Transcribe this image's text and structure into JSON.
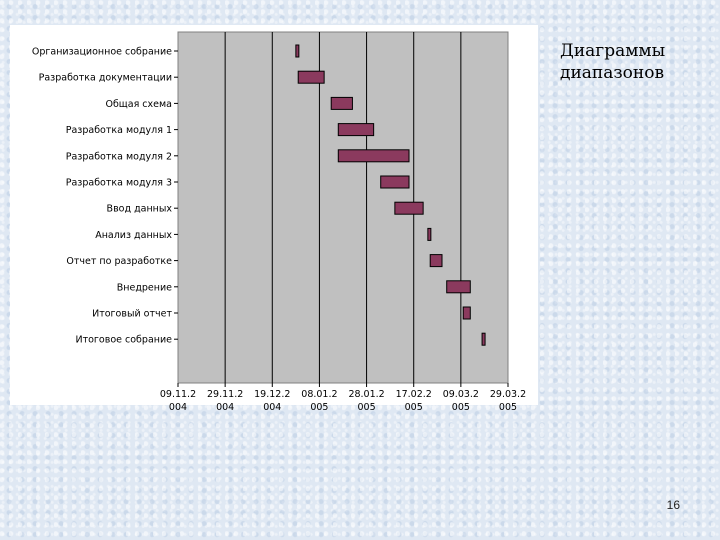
{
  "slide": {
    "title_line1": "Диаграммы",
    "title_line2": "диапазонов",
    "page_number": "16"
  },
  "colors": {
    "plot_background": "#c0c0c0",
    "bar_fill": "#8b3a5e",
    "bar_stroke": "#000000",
    "gridline": "#000000"
  },
  "chart_data": {
    "type": "bar",
    "orientation": "horizontal-range",
    "title": "",
    "xlabel": "",
    "ylabel": "",
    "grid": true,
    "legend": "none",
    "x_tick_labels": [
      [
        "09.11.2",
        "004"
      ],
      [
        "29.11.2",
        "004"
      ],
      [
        "19.12.2",
        "004"
      ],
      [
        "08.01.2",
        "005"
      ],
      [
        "28.01.2",
        "005"
      ],
      [
        "17.02.2",
        "005"
      ],
      [
        "09.03.2",
        "005"
      ],
      [
        "29.03.2",
        "005"
      ]
    ],
    "xlim": [
      "2004-11-09",
      "2005-03-29"
    ],
    "tasks": [
      {
        "name": "Организационное собрание",
        "start": "2004-12-29",
        "end": "2004-12-30"
      },
      {
        "name": "Разработка документации",
        "start": "2004-12-30",
        "end": "2005-01-10"
      },
      {
        "name": "Общая схема",
        "start": "2005-01-13",
        "end": "2005-01-22"
      },
      {
        "name": "Разработка модуля 1",
        "start": "2005-01-16",
        "end": "2005-01-31"
      },
      {
        "name": "Разработка модуля 2",
        "start": "2005-01-16",
        "end": "2005-02-15"
      },
      {
        "name": "Разработка модуля 3",
        "start": "2005-02-03",
        "end": "2005-02-15"
      },
      {
        "name": "Ввод данных",
        "start": "2005-02-09",
        "end": "2005-02-21"
      },
      {
        "name": "Анализ данных",
        "start": "2005-02-23",
        "end": "2005-02-24"
      },
      {
        "name": "Отчет по разработке",
        "start": "2005-02-24",
        "end": "2005-02-29"
      },
      {
        "name": "Внедрение",
        "start": "2005-03-03",
        "end": "2005-03-13"
      },
      {
        "name": "Итоговый отчет",
        "start": "2005-03-10",
        "end": "2005-03-13"
      },
      {
        "name": "Итоговое собрание",
        "start": "2005-03-18",
        "end": "2005-03-19"
      }
    ]
  }
}
